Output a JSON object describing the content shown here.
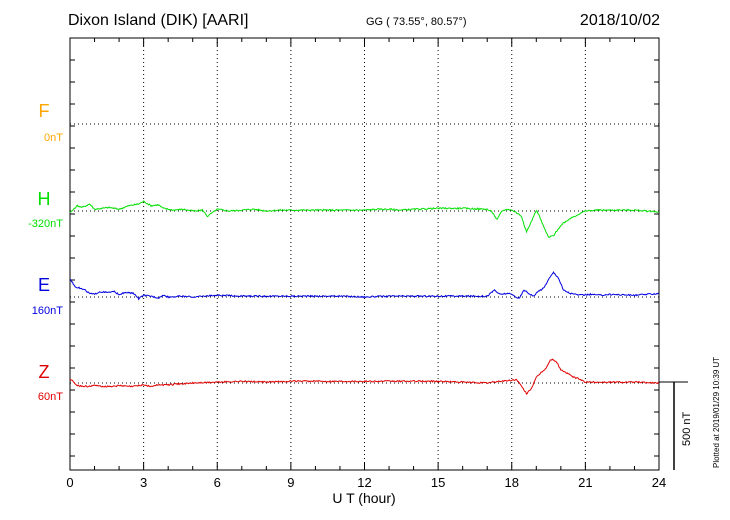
{
  "header": {
    "station": "Dixon Island (DIK)  [AARI]",
    "coords": "GG ( 73.55°,  80.57°)",
    "date": "2018/10/02"
  },
  "plotted_note": "Plotted at 2019/01/29 10:39 UT",
  "scale_bar_label": "500 nT",
  "colors": {
    "F": "#ffa500",
    "H": "#00e000",
    "E": "#0000e0",
    "Z": "#e00000"
  },
  "chart_data": {
    "type": "line",
    "xlabel": "U T (hour)",
    "xlim": [
      0,
      24
    ],
    "x_ticks": [
      "0",
      "3",
      "6",
      "9",
      "12",
      "15",
      "18",
      "21",
      "24"
    ],
    "scale_bar_nT": 500,
    "series": [
      {
        "name": "F",
        "baseline_label": "0nT",
        "values": []
      },
      {
        "name": "H",
        "baseline_label": "-320nT",
        "x": [
          0,
          0.3,
          0.5,
          0.8,
          1.0,
          1.3,
          1.6,
          2.0,
          2.4,
          2.8,
          3.0,
          3.3,
          3.6,
          3.8,
          4.2,
          4.6,
          5.0,
          5.4,
          5.6,
          6.0,
          6.5,
          7.0,
          7.5,
          8.0,
          8.5,
          9.0,
          10.0,
          11.0,
          12.0,
          12.5,
          13.0,
          13.5,
          14.0,
          15.0,
          16.0,
          17.0,
          17.2,
          17.4,
          17.6,
          17.8,
          18.0,
          18.2,
          18.4,
          18.6,
          18.8,
          19.0,
          19.1,
          19.3,
          19.5,
          19.7,
          19.9,
          20.1,
          20.4,
          20.7,
          21.0,
          21.5,
          22.0,
          23.0,
          24.0
        ],
        "values": [
          -10,
          30,
          20,
          40,
          10,
          15,
          20,
          10,
          30,
          40,
          55,
          30,
          35,
          15,
          5,
          10,
          0,
          5,
          -30,
          10,
          0,
          5,
          10,
          0,
          5,
          5,
          5,
          5,
          5,
          10,
          10,
          5,
          10,
          15,
          15,
          10,
          -5,
          -50,
          0,
          10,
          5,
          -10,
          -30,
          -120,
          -60,
          5,
          -20,
          -90,
          -150,
          -140,
          -100,
          -70,
          -40,
          -20,
          0,
          5,
          5,
          5,
          -5
        ]
      },
      {
        "name": "E",
        "baseline_label": "160nT",
        "x": [
          0,
          0.2,
          0.4,
          0.6,
          0.8,
          1.0,
          1.2,
          1.5,
          1.8,
          2.0,
          2.3,
          2.6,
          2.8,
          3.0,
          3.3,
          3.6,
          3.8,
          4.0,
          4.5,
          5.0,
          5.5,
          6.0,
          7.0,
          8.0,
          9.0,
          10.0,
          11.0,
          12.0,
          13.0,
          14.0,
          15.0,
          16.0,
          17.0,
          17.3,
          17.5,
          17.8,
          18.0,
          18.3,
          18.5,
          18.7,
          18.9,
          19.1,
          19.3,
          19.5,
          19.7,
          19.9,
          20.1,
          20.4,
          20.8,
          21.2,
          21.6,
          22.0,
          23.0,
          24.0
        ],
        "values": [
          105,
          60,
          50,
          40,
          20,
          15,
          30,
          25,
          30,
          15,
          25,
          20,
          -10,
          10,
          5,
          -5,
          10,
          0,
          5,
          0,
          5,
          10,
          5,
          5,
          5,
          5,
          5,
          0,
          5,
          5,
          5,
          5,
          5,
          40,
          15,
          20,
          15,
          -10,
          40,
          20,
          5,
          35,
          50,
          100,
          140,
          110,
          40,
          20,
          10,
          15,
          10,
          15,
          10,
          20
        ]
      },
      {
        "name": "Z",
        "baseline_label": "60nT",
        "x": [
          0,
          0.3,
          0.6,
          1.0,
          1.5,
          2.0,
          2.5,
          3.0,
          3.3,
          3.6,
          4.0,
          5.0,
          6.0,
          7.0,
          8.0,
          9.0,
          10.0,
          11.0,
          12.0,
          13.0,
          14.0,
          15.0,
          16.0,
          17.0,
          17.5,
          18.0,
          18.2,
          18.4,
          18.6,
          18.8,
          19.0,
          19.2,
          19.4,
          19.6,
          19.8,
          20.0,
          20.2,
          20.5,
          20.8,
          21.0,
          21.5,
          22.0,
          23.0,
          24.0
        ],
        "values": [
          25,
          -15,
          -20,
          -15,
          -20,
          -15,
          -20,
          -10,
          -20,
          -10,
          -10,
          0,
          5,
          10,
          5,
          10,
          10,
          10,
          10,
          10,
          10,
          10,
          5,
          0,
          10,
          15,
          20,
          -20,
          -60,
          -30,
          30,
          60,
          85,
          135,
          125,
          75,
          60,
          35,
          20,
          5,
          5,
          5,
          5,
          0
        ]
      }
    ]
  }
}
